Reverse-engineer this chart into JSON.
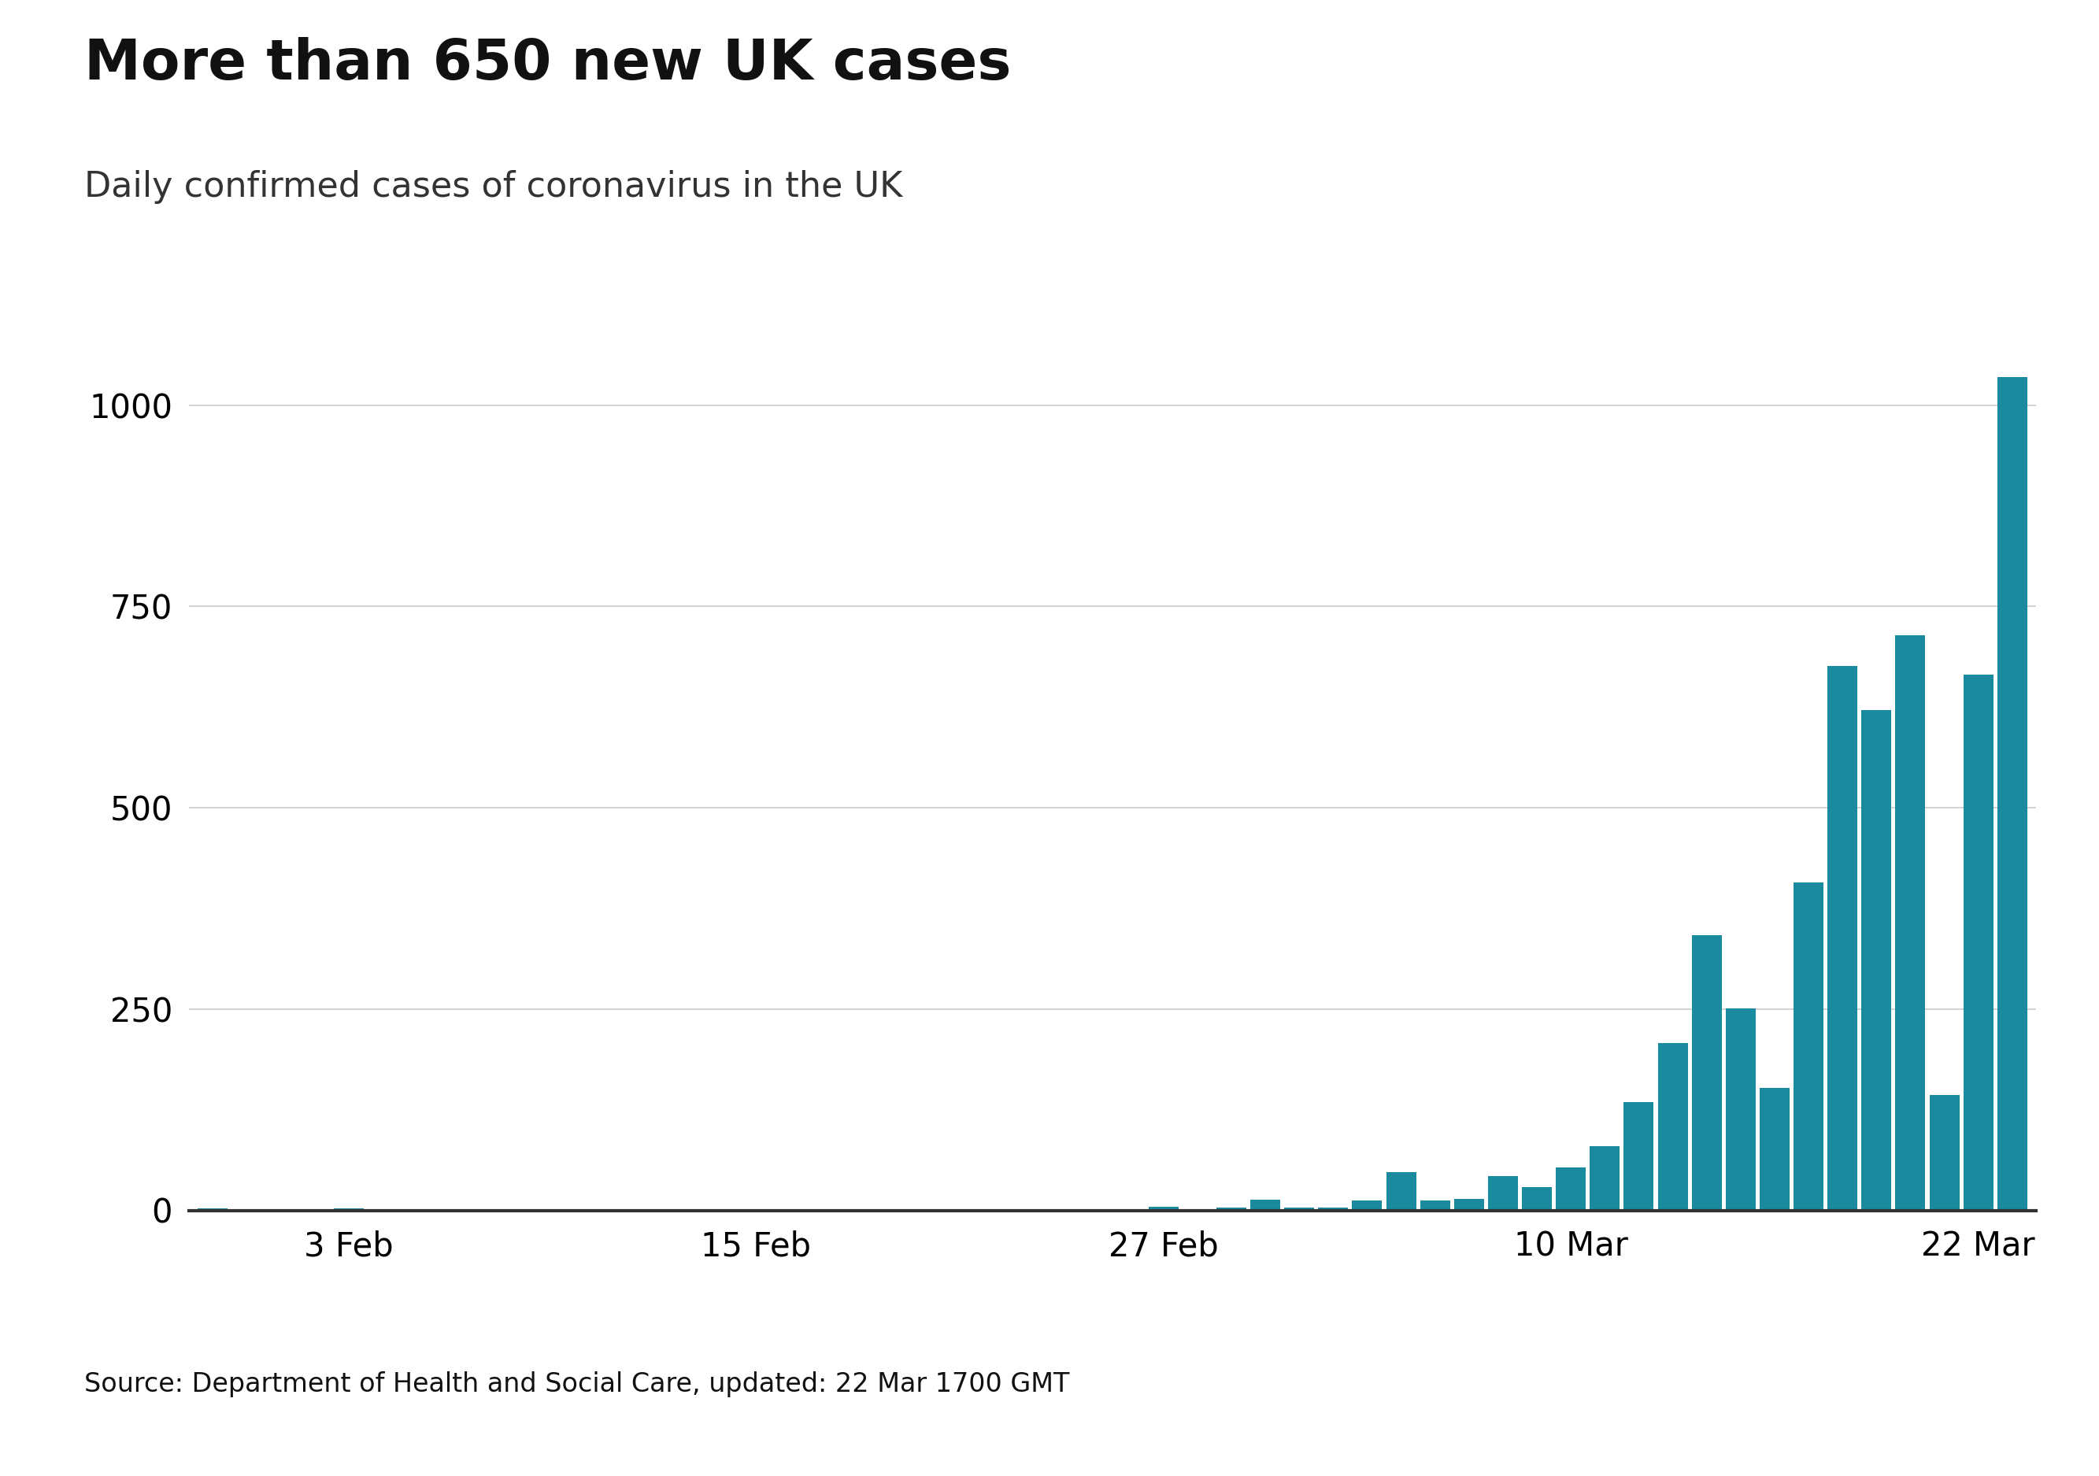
{
  "title": "More than 650 new UK cases",
  "subtitle": "Daily confirmed cases of coronavirus in the UK",
  "source_text": "Source: Department of Health and Social Care, updated: 22 Mar 1700 GMT",
  "bar_color": "#1a8a9e",
  "background_color": "#ffffff",
  "yticks": [
    0,
    250,
    500,
    750,
    1000
  ],
  "ylim": [
    0,
    1100
  ],
  "values": [
    2,
    1,
    0,
    0,
    2,
    1,
    0,
    0,
    0,
    0,
    0,
    0,
    0,
    0,
    0,
    0,
    0,
    0,
    0,
    0,
    0,
    0,
    0,
    0,
    0,
    0,
    0,
    0,
    4,
    0,
    3,
    13,
    3,
    3,
    12,
    47,
    12,
    14,
    43,
    29,
    53,
    80,
    134,
    208,
    342,
    251,
    152,
    407,
    676,
    621,
    714,
    143,
    665,
    1035
  ],
  "xtick_labels": [
    "3 Feb",
    "15 Feb",
    "27 Feb",
    "10 Mar",
    "22 Mar"
  ],
  "title_fontsize": 52,
  "subtitle_fontsize": 32,
  "source_fontsize": 24,
  "tick_fontsize": 30,
  "bbc_box_color": "#6d6d6d",
  "footer_line_color": "#000000",
  "spine_color": "#333333"
}
